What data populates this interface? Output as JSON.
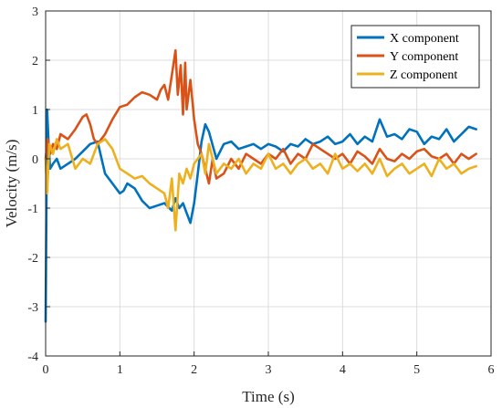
{
  "chart_data": {
    "type": "line",
    "title": "",
    "xlabel": "Time (s)",
    "ylabel": "Velocity (m/s)",
    "xlim": [
      0,
      6
    ],
    "ylim": [
      -4,
      3
    ],
    "xticks": [
      0,
      1,
      2,
      3,
      4,
      5,
      6
    ],
    "yticks": [
      -4,
      -3,
      -2,
      -1,
      0,
      1,
      2,
      3
    ],
    "grid": true,
    "legend_location": "top-right",
    "series": [
      {
        "name": "X component",
        "color": "#0072BD",
        "x": [
          0,
          0.02,
          0.04,
          0.06,
          0.1,
          0.15,
          0.2,
          0.3,
          0.4,
          0.5,
          0.6,
          0.7,
          0.8,
          0.9,
          1.0,
          1.05,
          1.1,
          1.2,
          1.3,
          1.4,
          1.5,
          1.6,
          1.7,
          1.75,
          1.8,
          1.85,
          1.9,
          1.95,
          2.0,
          2.05,
          2.1,
          2.15,
          2.2,
          2.3,
          2.4,
          2.5,
          2.6,
          2.7,
          2.8,
          2.9,
          3.0,
          3.1,
          3.2,
          3.3,
          3.4,
          3.5,
          3.6,
          3.7,
          3.8,
          3.9,
          4.0,
          4.1,
          4.2,
          4.3,
          4.4,
          4.5,
          4.6,
          4.7,
          4.8,
          4.9,
          5.0,
          5.1,
          5.2,
          5.3,
          5.4,
          5.5,
          5.6,
          5.7,
          5.8
        ],
        "y": [
          -3.3,
          1.0,
          0.3,
          -0.2,
          -0.1,
          0.0,
          -0.2,
          -0.1,
          0.0,
          0.15,
          0.3,
          0.35,
          -0.3,
          -0.5,
          -0.7,
          -0.65,
          -0.5,
          -0.6,
          -0.85,
          -1.0,
          -0.95,
          -0.9,
          -1.05,
          -0.8,
          -1.0,
          -0.9,
          -1.1,
          -1.3,
          -0.9,
          -0.3,
          0.35,
          0.7,
          0.55,
          0.0,
          0.3,
          0.35,
          0.2,
          0.25,
          0.3,
          0.2,
          0.3,
          0.25,
          0.15,
          0.3,
          0.25,
          0.4,
          0.3,
          0.35,
          0.45,
          0.3,
          0.35,
          0.5,
          0.3,
          0.45,
          0.35,
          0.8,
          0.45,
          0.5,
          0.4,
          0.6,
          0.55,
          0.3,
          0.45,
          0.4,
          0.6,
          0.35,
          0.5,
          0.65,
          0.6
        ]
      },
      {
        "name": "Y component",
        "color": "#D95319",
        "x": [
          0,
          0.03,
          0.06,
          0.1,
          0.15,
          0.2,
          0.3,
          0.4,
          0.5,
          0.55,
          0.6,
          0.65,
          0.7,
          0.8,
          0.9,
          1.0,
          1.1,
          1.2,
          1.3,
          1.4,
          1.5,
          1.55,
          1.6,
          1.65,
          1.7,
          1.75,
          1.78,
          1.82,
          1.85,
          1.88,
          1.9,
          1.95,
          2.0,
          2.05,
          2.1,
          2.15,
          2.2,
          2.25,
          2.3,
          2.4,
          2.5,
          2.6,
          2.7,
          2.8,
          2.9,
          3.0,
          3.1,
          3.2,
          3.3,
          3.4,
          3.5,
          3.6,
          3.7,
          3.8,
          3.9,
          4.0,
          4.1,
          4.2,
          4.3,
          4.4,
          4.5,
          4.6,
          4.7,
          4.8,
          4.9,
          5.0,
          5.1,
          5.2,
          5.3,
          5.4,
          5.5,
          5.6,
          5.7,
          5.8
        ],
        "y": [
          0.0,
          0.4,
          0.1,
          0.3,
          0.2,
          0.5,
          0.4,
          0.6,
          0.85,
          0.9,
          0.7,
          0.4,
          0.3,
          0.5,
          0.8,
          1.05,
          1.1,
          1.25,
          1.35,
          1.3,
          1.2,
          1.4,
          1.5,
          1.2,
          1.7,
          2.2,
          1.3,
          1.9,
          0.9,
          1.95,
          1.0,
          1.6,
          0.8,
          0.3,
          0.1,
          -0.2,
          -0.5,
          0.0,
          -0.4,
          -0.3,
          0.0,
          -0.2,
          0.1,
          0.0,
          -0.1,
          0.1,
          0.0,
          0.2,
          -0.1,
          0.1,
          0.0,
          0.3,
          0.2,
          0.1,
          0.0,
          0.1,
          -0.1,
          0.15,
          0.05,
          -0.1,
          0.2,
          0.0,
          -0.05,
          0.1,
          0.0,
          0.15,
          0.2,
          0.05,
          0.0,
          0.1,
          -0.1,
          0.1,
          0.0,
          0.1
        ]
      },
      {
        "name": "Z component",
        "color": "#EDB120",
        "x": [
          0,
          0.02,
          0.05,
          0.1,
          0.15,
          0.2,
          0.3,
          0.4,
          0.5,
          0.6,
          0.7,
          0.8,
          0.9,
          1.0,
          1.1,
          1.2,
          1.3,
          1.4,
          1.5,
          1.6,
          1.65,
          1.7,
          1.75,
          1.8,
          1.85,
          1.9,
          1.95,
          2.0,
          2.05,
          2.1,
          2.15,
          2.2,
          2.3,
          2.4,
          2.5,
          2.6,
          2.7,
          2.8,
          2.9,
          3.0,
          3.1,
          3.2,
          3.3,
          3.4,
          3.5,
          3.6,
          3.7,
          3.8,
          3.9,
          4.0,
          4.1,
          4.2,
          4.3,
          4.4,
          4.5,
          4.6,
          4.7,
          4.8,
          4.9,
          5.0,
          5.1,
          5.2,
          5.3,
          5.4,
          5.5,
          5.6,
          5.7,
          5.8
        ],
        "y": [
          0.0,
          -0.7,
          0.3,
          0.1,
          0.4,
          0.2,
          0.3,
          -0.2,
          0.0,
          -0.1,
          0.3,
          0.4,
          0.2,
          -0.2,
          -0.3,
          -0.4,
          -0.35,
          -0.5,
          -0.6,
          -0.7,
          -1.0,
          -0.4,
          -1.45,
          -0.3,
          -0.5,
          -0.2,
          -0.4,
          -0.1,
          0.0,
          0.1,
          -0.3,
          0.3,
          -0.3,
          -0.1,
          -0.2,
          0.0,
          -0.3,
          -0.1,
          -0.2,
          0.1,
          -0.2,
          -0.1,
          -0.3,
          -0.1,
          0.0,
          -0.2,
          -0.1,
          -0.3,
          0.1,
          -0.2,
          -0.1,
          -0.25,
          -0.1,
          -0.3,
          0.0,
          -0.35,
          -0.2,
          -0.1,
          -0.3,
          -0.2,
          -0.1,
          -0.35,
          0.0,
          -0.2,
          -0.1,
          -0.3,
          -0.2,
          -0.15
        ]
      }
    ]
  }
}
